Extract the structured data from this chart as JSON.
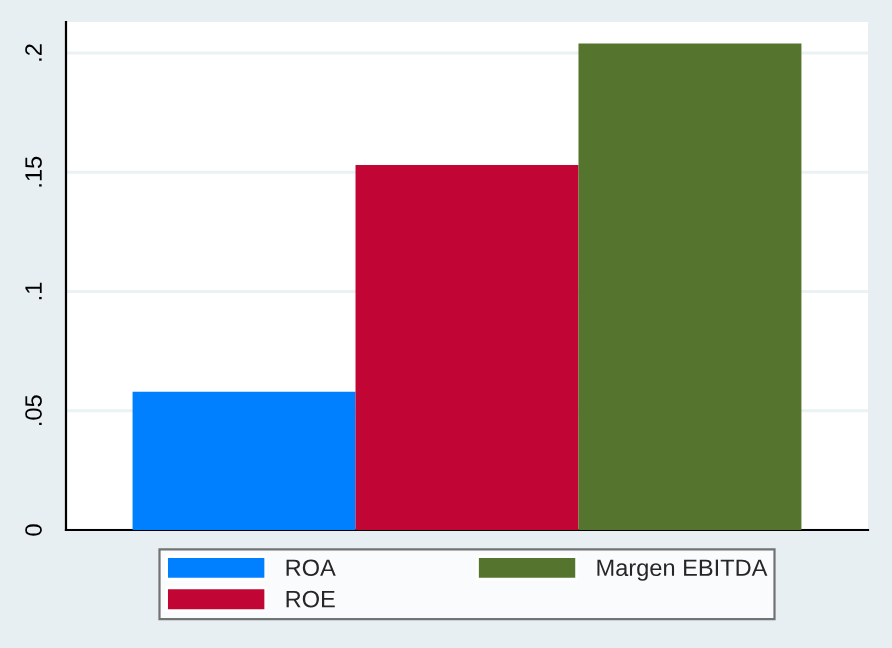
{
  "chart_data": {
    "type": "bar",
    "categories": [
      null
    ],
    "series": [
      {
        "name": "ROA",
        "color": "#0080ff",
        "values": [
          0.058
        ]
      },
      {
        "name": "ROE",
        "color": "#c10534",
        "values": [
          0.153
        ]
      },
      {
        "name": "Margen EBITDA",
        "color": "#55752f",
        "values": [
          0.204
        ]
      }
    ],
    "ylim": [
      0,
      0.213
    ],
    "yticks": [
      {
        "value": 0,
        "label": "0"
      },
      {
        "value": 0.05,
        "label": ".05"
      },
      {
        "value": 0.1,
        "label": ".1"
      },
      {
        "value": 0.15,
        "label": ".15"
      },
      {
        "value": 0.2,
        "label": ".2"
      }
    ],
    "grid": "y",
    "legend": "bottom"
  }
}
